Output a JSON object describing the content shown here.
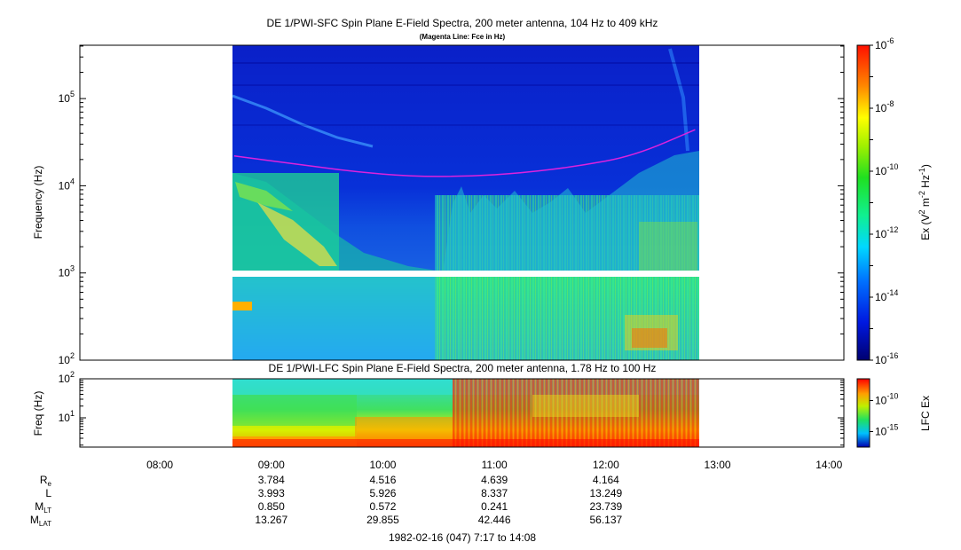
{
  "chart_data": [
    {
      "type": "heatmap",
      "title": "DE 1/PWI-SFC  Spin Plane E-Field Spectra, 200 meter antenna, 104 Hz to 409 kHz",
      "subtitle": "(Magenta Line: Fce in Hz)",
      "ylabel": "Frequency (Hz)",
      "yscale": "log",
      "ylim": [
        100,
        409000
      ],
      "yticks": [
        {
          "value": 100,
          "base": "10",
          "exp": "2"
        },
        {
          "value": 1000,
          "base": "10",
          "exp": "3"
        },
        {
          "value": 10000,
          "base": "10",
          "exp": "4"
        },
        {
          "value": 100000,
          "base": "10",
          "exp": "5"
        }
      ],
      "xlim": [
        "07:17",
        "14:08"
      ],
      "data_coverage": [
        "08:40",
        "12:50"
      ],
      "gap_hz": [
        930,
        1040
      ],
      "fce_line_color": "#dd22dd",
      "fce_line_hz": [
        {
          "t": "08:40",
          "hz": 22000
        },
        {
          "t": "09:15",
          "hz": 17500
        },
        {
          "t": "09:45",
          "hz": 14500
        },
        {
          "t": "10:15",
          "hz": 12800
        },
        {
          "t": "10:45",
          "hz": 12800
        },
        {
          "t": "11:15",
          "hz": 14000
        },
        {
          "t": "11:45",
          "hz": 16800
        },
        {
          "t": "12:15",
          "hz": 22000
        },
        {
          "t": "12:48",
          "hz": 44000
        }
      ],
      "colorbar": {
        "label_main": "Ex (V",
        "label_sup1": "2",
        "label_mid": " m",
        "label_sup2": "-2",
        "label_mid2": " Hz",
        "label_sup3": "-1",
        "label_end": ")",
        "scale": "log",
        "range": [
          1e-16,
          1e-06
        ],
        "ticks": [
          {
            "value": 1e-16,
            "base": "10",
            "exp": "-16"
          },
          {
            "value": 1e-14,
            "base": "10",
            "exp": "-14"
          },
          {
            "value": 1e-12,
            "base": "10",
            "exp": "-12"
          },
          {
            "value": 1e-10,
            "base": "10",
            "exp": "-10"
          },
          {
            "value": 1e-08,
            "base": "10",
            "exp": "-8"
          },
          {
            "value": 1e-06,
            "base": "10",
            "exp": "-6"
          }
        ]
      }
    },
    {
      "type": "heatmap",
      "title": "DE 1/PWI-LFC  Spin Plane E-Field Spectra, 200 meter antenna, 1.78 Hz to 100 Hz",
      "ylabel": "Freq (Hz)",
      "yscale": "log",
      "ylim": [
        1.78,
        100
      ],
      "yticks": [
        {
          "value": 10,
          "base": "10",
          "exp": "1"
        },
        {
          "value": 100,
          "base": "10",
          "exp": "2"
        }
      ],
      "xlim": [
        "07:17",
        "14:08"
      ],
      "data_coverage": [
        "08:40",
        "12:50"
      ],
      "colorbar": {
        "label": "LFC Ex",
        "scale": "log",
        "ticks": [
          {
            "value": 1e-15,
            "base": "10",
            "exp": "-15"
          },
          {
            "value": 1e-10,
            "base": "10",
            "exp": "-10"
          }
        ]
      }
    }
  ],
  "time_axis": {
    "ticks": [
      "08:00",
      "09:00",
      "10:00",
      "11:00",
      "12:00",
      "13:00",
      "14:00"
    ]
  },
  "ephemeris": {
    "rows": [
      {
        "label": "R",
        "sub": "e",
        "values": [
          "3.784",
          "4.516",
          "4.639",
          "4.164"
        ]
      },
      {
        "label": "L",
        "sub": "",
        "values": [
          "3.993",
          "5.926",
          "8.337",
          "13.249"
        ]
      },
      {
        "label": "M",
        "sub": "LT",
        "values": [
          "0.850",
          "0.572",
          "0.241",
          "23.739"
        ]
      },
      {
        "label": "M",
        "sub": "LAT",
        "values": [
          "13.267",
          "29.855",
          "42.446",
          "56.137"
        ]
      }
    ]
  },
  "footer": "1982-02-16 (047) 7:17 to 14:08"
}
